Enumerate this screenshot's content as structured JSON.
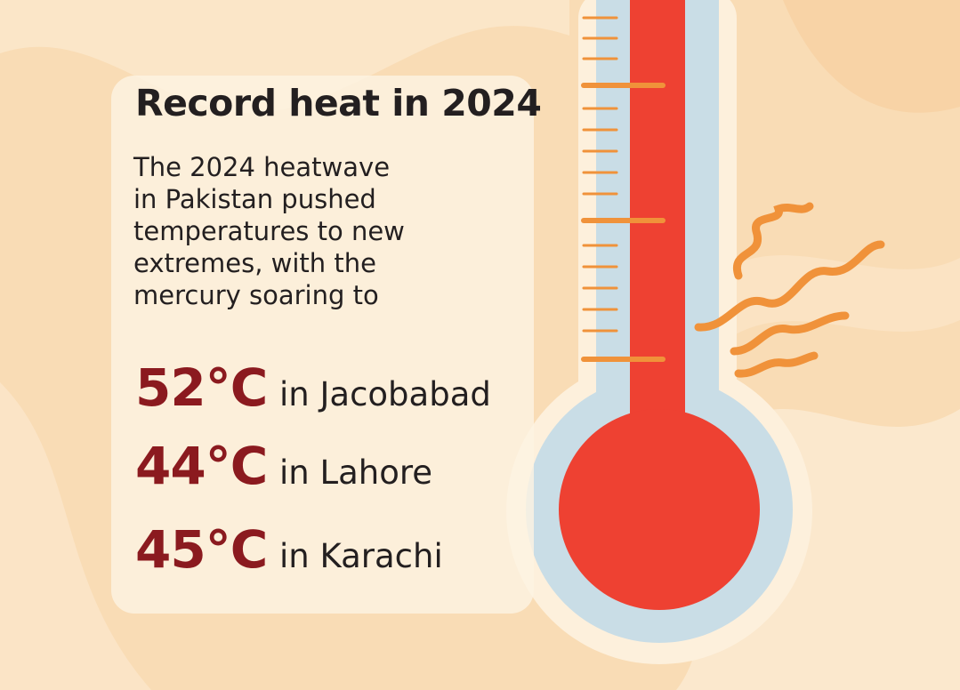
{
  "title": "Record heat in 2024",
  "description": [
    "The 2024 heatwave",
    "in Pakistan pushed",
    "temperatures to new",
    "extremes, with the",
    "mercury soaring to"
  ],
  "stats": [
    {
      "temperature": "52°C",
      "place": "in Jacobabad"
    },
    {
      "temperature": "44°C",
      "place": "in Lahore"
    },
    {
      "temperature": "45°C",
      "place": "in Karachi"
    }
  ]
}
